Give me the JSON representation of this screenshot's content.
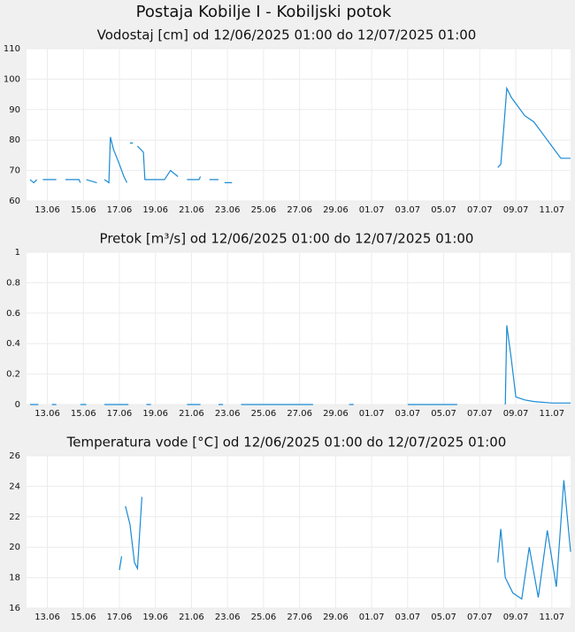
{
  "title": "Postaja Kobilje I - Kobiljski potok",
  "chart_data": [
    {
      "type": "line",
      "title": "Vodostaj [cm] od 12/06/2025 01:00 do 12/07/2025 01:00",
      "color": "#1a8ad4",
      "grid": true,
      "xlim": [
        "2025-06-12T01:00",
        "2025-07-12T01:00"
      ],
      "ylim": [
        60,
        110
      ],
      "yticks": [
        60,
        70,
        80,
        90,
        100,
        110
      ],
      "xticks": [
        {
          "value": "2025-06-13T00:00",
          "label": "13.06"
        },
        {
          "value": "2025-06-15T00:00",
          "label": "15.06"
        },
        {
          "value": "2025-06-17T00:00",
          "label": "17.06"
        },
        {
          "value": "2025-06-19T00:00",
          "label": "19.06"
        },
        {
          "value": "2025-06-21T00:00",
          "label": "21.06"
        },
        {
          "value": "2025-06-23T00:00",
          "label": "23.06"
        },
        {
          "value": "2025-06-25T00:00",
          "label": "25.06"
        },
        {
          "value": "2025-06-27T00:00",
          "label": "27.06"
        },
        {
          "value": "2025-06-29T00:00",
          "label": "29.06"
        },
        {
          "value": "2025-07-01T00:00",
          "label": "01.07"
        },
        {
          "value": "2025-07-03T00:00",
          "label": "03.07"
        },
        {
          "value": "2025-07-05T00:00",
          "label": "05.07"
        },
        {
          "value": "2025-07-07T00:00",
          "label": "07.07"
        },
        {
          "value": "2025-07-09T00:00",
          "label": "09.07"
        },
        {
          "value": "2025-07-11T00:00",
          "label": "11.07"
        }
      ],
      "x": [
        "2025-06-12T01:00",
        "2025-06-12T06:00",
        "2025-06-12T10:00",
        "2025-06-12T14:00",
        "2025-06-12T18:00",
        "2025-06-13T12:00",
        "2025-06-13T18:00",
        "2025-06-14T00:00",
        "2025-06-14T18:00",
        "2025-06-14T20:00",
        "2025-06-15T00:00",
        "2025-06-15T04:00",
        "2025-06-15T18:00",
        "2025-06-15T22:00",
        "2025-06-16T04:00",
        "2025-06-16T10:00",
        "2025-06-16T12:00",
        "2025-06-16T16:00",
        "2025-06-17T00:00",
        "2025-06-17T06:00",
        "2025-06-17T10:00",
        "2025-06-17T12:00",
        "2025-06-17T14:00",
        "2025-06-17T18:00",
        "2025-06-17T20:00",
        "2025-06-18T00:00",
        "2025-06-18T08:00",
        "2025-06-18T10:00",
        "2025-06-19T12:00",
        "2025-06-19T20:00",
        "2025-06-20T06:00",
        "2025-06-20T12:00",
        "2025-06-20T18:00",
        "2025-06-21T10:00",
        "2025-06-21T12:00",
        "2025-06-21T18:00",
        "2025-06-22T00:00",
        "2025-06-22T12:00",
        "2025-06-22T18:00",
        "2025-06-22T20:00",
        "2025-06-23T06:00",
        "2025-06-23T10:00",
        "2025-07-08T00:00",
        "2025-07-08T04:00",
        "2025-07-08T08:00",
        "2025-07-08T12:00",
        "2025-07-08T18:00",
        "2025-07-09T12:00",
        "2025-07-10T00:00",
        "2025-07-10T12:00",
        "2025-07-11T00:00",
        "2025-07-11T12:00",
        "2025-07-12T01:00"
      ],
      "values": [
        67,
        66,
        67,
        null,
        67,
        67,
        null,
        67,
        67,
        66,
        null,
        67,
        66,
        null,
        67,
        66,
        81,
        77,
        72,
        68,
        66,
        null,
        79,
        79,
        null,
        78,
        76,
        67,
        67,
        70,
        68,
        null,
        67,
        67,
        68,
        null,
        67,
        67,
        null,
        66,
        66,
        null,
        71,
        72,
        84,
        97,
        94,
        88,
        86,
        82,
        78,
        74,
        74
      ]
    },
    {
      "type": "line",
      "title": "Pretok [m³/s] od 12/06/2025 01:00 do 12/07/2025 01:00",
      "color": "#1a8ad4",
      "grid": true,
      "xlim": [
        "2025-06-12T01:00",
        "2025-07-12T01:00"
      ],
      "ylim": [
        0,
        1
      ],
      "yticks": [
        0,
        0.2,
        0.4,
        0.6,
        0.8,
        1
      ],
      "xticks": [
        {
          "value": "2025-06-13T00:00",
          "label": "13.06"
        },
        {
          "value": "2025-06-15T00:00",
          "label": "15.06"
        },
        {
          "value": "2025-06-17T00:00",
          "label": "17.06"
        },
        {
          "value": "2025-06-19T00:00",
          "label": "19.06"
        },
        {
          "value": "2025-06-21T00:00",
          "label": "21.06"
        },
        {
          "value": "2025-06-23T00:00",
          "label": "23.06"
        },
        {
          "value": "2025-06-25T00:00",
          "label": "25.06"
        },
        {
          "value": "2025-06-27T00:00",
          "label": "27.06"
        },
        {
          "value": "2025-06-29T00:00",
          "label": "29.06"
        },
        {
          "value": "2025-07-01T00:00",
          "label": "01.07"
        },
        {
          "value": "2025-07-03T00:00",
          "label": "03.07"
        },
        {
          "value": "2025-07-05T00:00",
          "label": "05.07"
        },
        {
          "value": "2025-07-07T00:00",
          "label": "07.07"
        },
        {
          "value": "2025-07-09T00:00",
          "label": "09.07"
        },
        {
          "value": "2025-07-11T00:00",
          "label": "11.07"
        }
      ],
      "x": [
        "2025-06-12T01:00",
        "2025-06-12T12:00",
        "2025-06-12T18:00",
        "2025-06-13T06:00",
        "2025-06-13T12:00",
        "2025-06-14T12:00",
        "2025-06-14T20:00",
        "2025-06-15T04:00",
        "2025-06-16T00:00",
        "2025-06-16T04:00",
        "2025-06-17T12:00",
        "2025-06-17T14:00",
        "2025-06-18T12:00",
        "2025-06-18T18:00",
        "2025-06-20T12:00",
        "2025-06-20T18:00",
        "2025-06-21T12:00",
        "2025-06-21T18:00",
        "2025-06-22T12:00",
        "2025-06-22T18:00",
        "2025-06-23T12:00",
        "2025-06-23T18:00",
        "2025-06-27T18:00",
        "2025-06-28T00:00",
        "2025-06-29T18:00",
        "2025-06-30T00:00",
        "2025-07-02T18:00",
        "2025-07-03T00:00",
        "2025-07-05T18:00",
        "2025-07-06T00:00",
        "2025-07-08T10:00",
        "2025-07-08T12:00",
        "2025-07-08T18:00",
        "2025-07-09T00:00",
        "2025-07-09T12:00",
        "2025-07-10T00:00",
        "2025-07-11T00:00",
        "2025-07-12T01:00"
      ],
      "values": [
        0,
        0,
        null,
        0,
        0,
        null,
        0,
        0,
        null,
        0,
        0,
        null,
        0,
        0,
        null,
        0,
        0,
        null,
        0,
        0,
        null,
        0,
        0,
        null,
        0,
        0,
        null,
        0,
        0,
        null,
        0,
        0.52,
        0.3,
        0.05,
        0.03,
        0.02,
        0.01,
        0.01
      ]
    },
    {
      "type": "line",
      "title": "Temperatura vode [°C] od 12/06/2025 01:00 do 12/07/2025 01:00",
      "color": "#1a8ad4",
      "grid": true,
      "xlim": [
        "2025-06-12T01:00",
        "2025-07-12T01:00"
      ],
      "ylim": [
        16,
        26
      ],
      "yticks": [
        16,
        18,
        20,
        22,
        24,
        26
      ],
      "xticks": [
        {
          "value": "2025-06-13T00:00",
          "label": "13.06"
        },
        {
          "value": "2025-06-15T00:00",
          "label": "15.06"
        },
        {
          "value": "2025-06-17T00:00",
          "label": "17.06"
        },
        {
          "value": "2025-06-19T00:00",
          "label": "19.06"
        },
        {
          "value": "2025-06-21T00:00",
          "label": "21.06"
        },
        {
          "value": "2025-06-23T00:00",
          "label": "23.06"
        },
        {
          "value": "2025-06-25T00:00",
          "label": "25.06"
        },
        {
          "value": "2025-06-27T00:00",
          "label": "27.06"
        },
        {
          "value": "2025-06-29T00:00",
          "label": "29.06"
        },
        {
          "value": "2025-07-01T00:00",
          "label": "01.07"
        },
        {
          "value": "2025-07-03T00:00",
          "label": "03.07"
        },
        {
          "value": "2025-07-05T00:00",
          "label": "05.07"
        },
        {
          "value": "2025-07-07T00:00",
          "label": "07.07"
        },
        {
          "value": "2025-07-09T00:00",
          "label": "09.07"
        },
        {
          "value": "2025-07-11T00:00",
          "label": "11.07"
        }
      ],
      "x": [
        "2025-06-17T00:00",
        "2025-06-17T03:00",
        "2025-06-17T06:00",
        "2025-06-17T08:00",
        "2025-06-17T14:00",
        "2025-06-17T20:00",
        "2025-06-18T00:00",
        "2025-06-18T06:00",
        "2025-06-18T10:00",
        "2025-07-08T00:00",
        "2025-07-08T04:00",
        "2025-07-08T10:00",
        "2025-07-08T20:00",
        "2025-07-09T08:00",
        "2025-07-09T18:00",
        "2025-07-10T06:00",
        "2025-07-10T18:00",
        "2025-07-11T06:00",
        "2025-07-11T16:00",
        "2025-07-12T01:00"
      ],
      "values": [
        18.5,
        19.4,
        null,
        22.7,
        21.5,
        19,
        18.6,
        23.3,
        null,
        19,
        21.2,
        18,
        17,
        16.6,
        20,
        16.7,
        21.1,
        17.4,
        24.4,
        19.7
      ]
    }
  ]
}
